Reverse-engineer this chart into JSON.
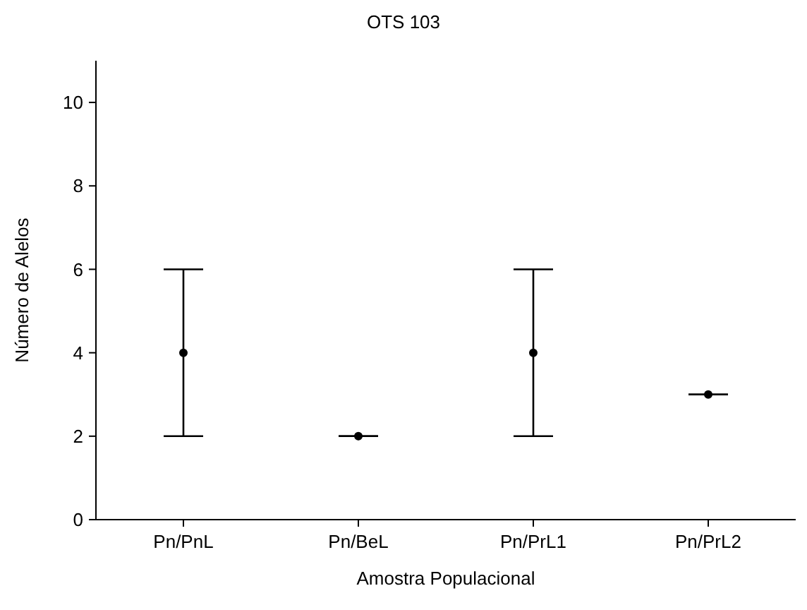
{
  "chart_data": {
    "type": "scatter",
    "title": "OTS 103",
    "xlabel": "Amostra Populacional",
    "ylabel": "Número de Alelos",
    "categories": [
      "Pn/PnL",
      "Pn/BeL",
      "Pn/PrL1",
      "Pn/PrL2"
    ],
    "values": [
      4,
      2,
      4,
      3
    ],
    "errors": [
      2,
      0,
      2,
      0
    ],
    "color": "#000000",
    "marker": "circle",
    "grid": false,
    "ylim": [
      0,
      11
    ],
    "yticks": [
      0,
      2,
      4,
      6,
      8,
      10
    ]
  }
}
